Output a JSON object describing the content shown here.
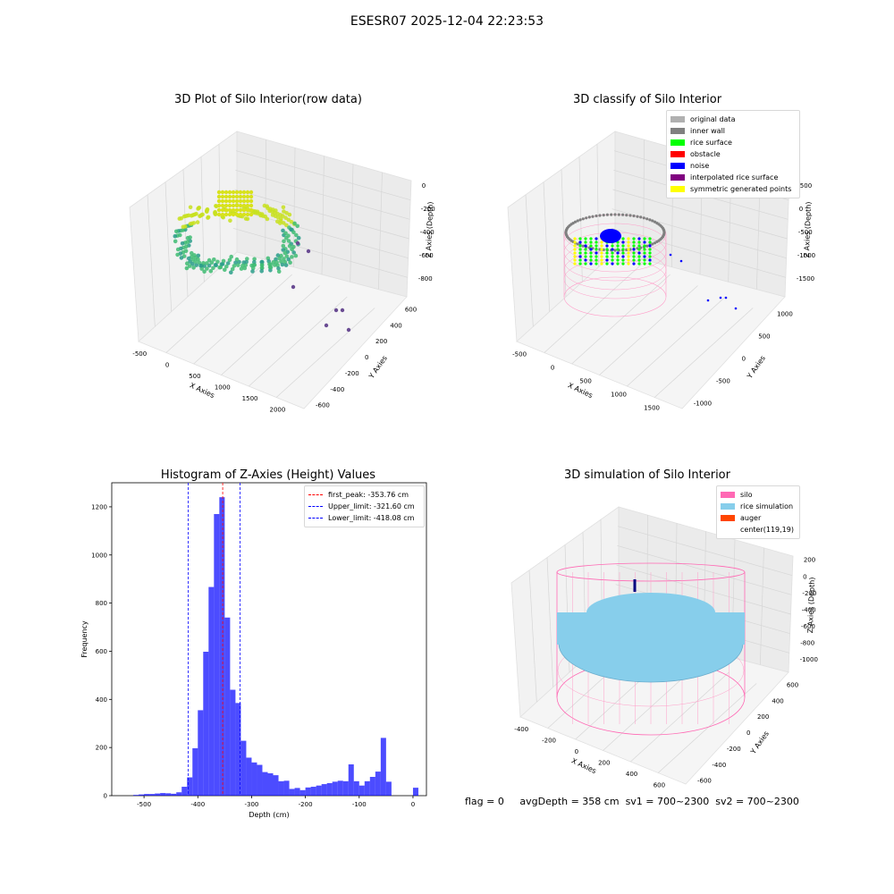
{
  "suptitle": "ESESR07 2025-12-04 22:23:53",
  "panels": {
    "raw": {
      "title": "3D Plot of Silo Interior(row data)",
      "xlabel": "X Axies",
      "ylabel": "Y Axies",
      "zlabel": "Z Axies (Depth)",
      "xticks": [
        "-500",
        "0",
        "500",
        "1000",
        "1500",
        "2000"
      ],
      "yticks": [
        "-600",
        "-400",
        "-200",
        "0",
        "200",
        "400",
        "600"
      ],
      "zticks": [
        "0",
        "-200",
        "-400",
        "-600",
        "-800"
      ]
    },
    "classify": {
      "title": "3D classify of Silo Interior",
      "xlabel": "X Axies",
      "ylabel": "Y Axies",
      "zlabel": "Z Axies (Depth)",
      "xticks": [
        "-500",
        "0",
        "500",
        "1000",
        "1500"
      ],
      "yticks": [
        "-1000",
        "-500",
        "0",
        "500",
        "1000"
      ],
      "zticks": [
        "500",
        "0",
        "-500",
        "-1000",
        "-1500"
      ],
      "legend": [
        {
          "label": "original data",
          "color": "#b0b0b0"
        },
        {
          "label": "inner wall",
          "color": "#808080"
        },
        {
          "label": "rice surface",
          "color": "#00ff00"
        },
        {
          "label": "obstacle",
          "color": "#ff0000"
        },
        {
          "label": "noise",
          "color": "#0000ff"
        },
        {
          "label": "interpolated rice surface",
          "color": "#800080"
        },
        {
          "label": "symmetric generated points",
          "color": "#ffff00"
        }
      ]
    },
    "simulation": {
      "title": "3D simulation of Silo Interior",
      "xlabel": "X Axies",
      "ylabel": "Y Axies",
      "zlabel": "Z Axies (Depth)",
      "xticks": [
        "-400",
        "-200",
        "0",
        "200",
        "400",
        "600"
      ],
      "yticks": [
        "-600",
        "-400",
        "-200",
        "0",
        "200",
        "400",
        "600"
      ],
      "zticks": [
        "200",
        "0",
        "-200",
        "-400",
        "-600",
        "-800",
        "-1000"
      ],
      "legend": [
        {
          "label": "silo",
          "color": "#ff69b4"
        },
        {
          "label": "rice simulation",
          "color": "#87ceeb"
        },
        {
          "label": "auger",
          "color": "#ff4500"
        },
        {
          "label": "center(119,19)",
          "color": ""
        }
      ]
    },
    "status": {
      "flag": "flag = 0",
      "avg": "avgDepth = 358 cm",
      "sv1": "sv1 = 700~2300",
      "sv2": "sv2 = 700~2300"
    }
  },
  "chart_data": [
    {
      "type": "scatter",
      "title": "3D Plot of Silo Interior(row data)",
      "xlabel": "X Axies",
      "ylabel": "Y Axies",
      "zlabel": "Z Axies (Depth)",
      "xlim": [
        -600,
        2000
      ],
      "ylim": [
        -650,
        650
      ],
      "zlim": [
        -950,
        50
      ]
    },
    {
      "type": "scatter",
      "title": "3D classify of Silo Interior",
      "xlabel": "X Axies",
      "ylabel": "Y Axies",
      "zlabel": "Z Axies (Depth)",
      "xlim": [
        -600,
        1600
      ],
      "ylim": [
        -1100,
        1100
      ],
      "zlim": [
        -1600,
        500
      ],
      "series": [
        {
          "name": "original data"
        },
        {
          "name": "inner wall"
        },
        {
          "name": "rice surface"
        },
        {
          "name": "obstacle"
        },
        {
          "name": "noise"
        },
        {
          "name": "interpolated rice surface"
        },
        {
          "name": "symmetric generated points"
        }
      ]
    },
    {
      "type": "bar",
      "title": "Histogram of Z-Axies (Height) Values",
      "xlabel": "Depth (cm)",
      "ylabel": "Frequency",
      "xlim": [
        -560,
        25
      ],
      "ylim": [
        0,
        1300
      ],
      "xticks": [
        -500,
        -400,
        -300,
        -200,
        -100,
        0
      ],
      "yticks": [
        0,
        200,
        400,
        600,
        800,
        1000,
        1200
      ],
      "bar_color": "#0000ff",
      "bins": [
        [
          -520,
          -510,
          3
        ],
        [
          -510,
          -500,
          5
        ],
        [
          -500,
          -490,
          7
        ],
        [
          -490,
          -480,
          7
        ],
        [
          -480,
          -470,
          9
        ],
        [
          -470,
          -460,
          11
        ],
        [
          -460,
          -450,
          10
        ],
        [
          -450,
          -440,
          8
        ],
        [
          -440,
          -430,
          14
        ],
        [
          -430,
          -420,
          37
        ],
        [
          -420,
          -410,
          76
        ],
        [
          -410,
          -400,
          197
        ],
        [
          -400,
          -390,
          355
        ],
        [
          -390,
          -380,
          598
        ],
        [
          -380,
          -370,
          867
        ],
        [
          -370,
          -360,
          1170
        ],
        [
          -360,
          -350,
          1240
        ],
        [
          -350,
          -340,
          740
        ],
        [
          -340,
          -330,
          440
        ],
        [
          -330,
          -320,
          385
        ],
        [
          -320,
          -310,
          228
        ],
        [
          -310,
          -300,
          158
        ],
        [
          -300,
          -290,
          138
        ],
        [
          -290,
          -280,
          128
        ],
        [
          -280,
          -270,
          98
        ],
        [
          -270,
          -260,
          93
        ],
        [
          -260,
          -250,
          85
        ],
        [
          -250,
          -240,
          60
        ],
        [
          -240,
          -230,
          62
        ],
        [
          -230,
          -220,
          28
        ],
        [
          -220,
          -210,
          32
        ],
        [
          -210,
          -200,
          23
        ],
        [
          -200,
          -190,
          34
        ],
        [
          -190,
          -180,
          37
        ],
        [
          -180,
          -170,
          42
        ],
        [
          -170,
          -160,
          48
        ],
        [
          -160,
          -150,
          52
        ],
        [
          -150,
          -140,
          58
        ],
        [
          -140,
          -130,
          62
        ],
        [
          -130,
          -120,
          60
        ],
        [
          -120,
          -110,
          130
        ],
        [
          -110,
          -100,
          60
        ],
        [
          -100,
          -90,
          42
        ],
        [
          -90,
          -80,
          60
        ],
        [
          -80,
          -70,
          78
        ],
        [
          -70,
          -60,
          100
        ],
        [
          -60,
          -50,
          240
        ],
        [
          -50,
          -40,
          58
        ],
        [
          -40,
          -30,
          0
        ],
        [
          -30,
          -20,
          0
        ],
        [
          -20,
          -10,
          0
        ],
        [
          -10,
          0,
          0
        ],
        [
          0,
          10,
          33
        ]
      ],
      "vlines": [
        {
          "name": "first_peak: -353.76 cm",
          "x": -353.76,
          "color": "#ff0000"
        },
        {
          "name": "Upper_limit: -321.60 cm",
          "x": -321.6,
          "color": "#0000ff"
        },
        {
          "name": "Lower_limit: -418.08 cm",
          "x": -418.08,
          "color": "#0000ff"
        }
      ],
      "legend": "upper right"
    },
    {
      "type": "scatter",
      "title": "3D simulation of Silo Interior",
      "xlabel": "X Axies",
      "ylabel": "Y Axies",
      "zlabel": "Z Axies (Depth)",
      "xlim": [
        -500,
        700
      ],
      "ylim": [
        -650,
        650
      ],
      "zlim": [
        -1050,
        250
      ],
      "series": [
        {
          "name": "silo"
        },
        {
          "name": "rice simulation"
        },
        {
          "name": "auger"
        },
        {
          "name": "center(119,19)"
        }
      ]
    }
  ]
}
